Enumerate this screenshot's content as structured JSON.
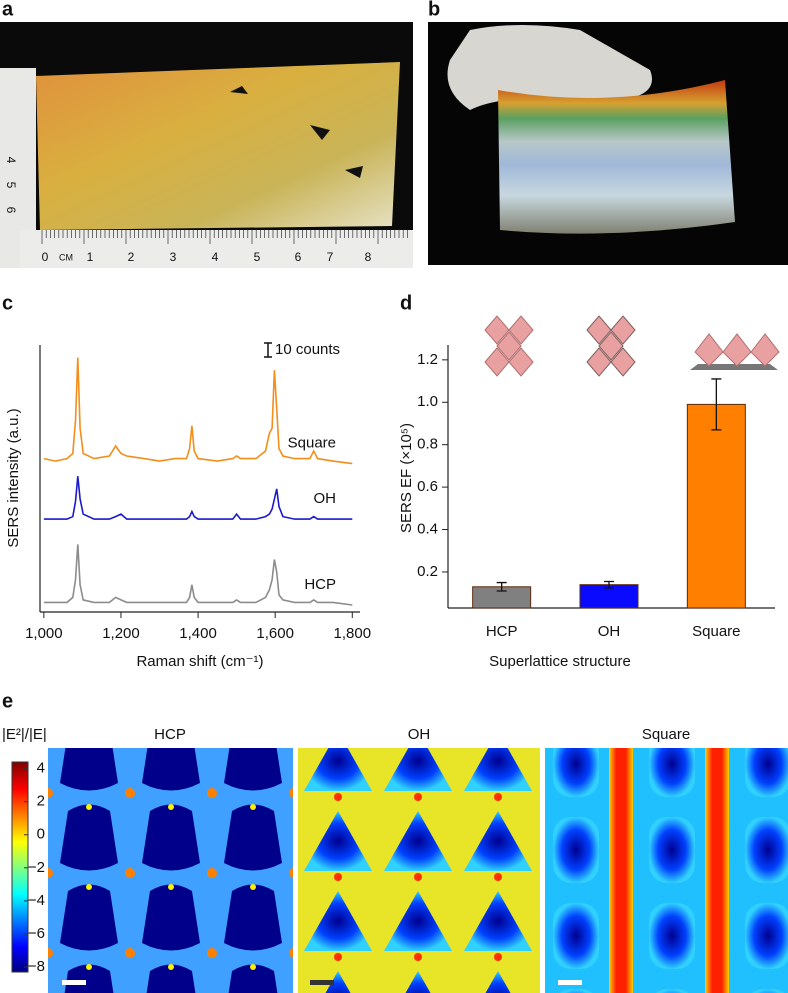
{
  "panel_labels": [
    "a",
    "b",
    "c",
    "d",
    "e"
  ],
  "panel_a": {
    "ruler_labels": [
      "0",
      "CM",
      "1",
      "2",
      "3",
      "4",
      "5",
      "6",
      "7",
      "8"
    ],
    "side_ruler_labels": [
      "4",
      "5",
      "6"
    ]
  },
  "chart_data": [
    {
      "type": "line",
      "annotation": "10 counts",
      "xlabel": "Raman shift (cm⁻¹)",
      "ylabel": "SERS intensity (a.u.)",
      "x": [
        1000,
        1030,
        1060,
        1075,
        1082,
        1088,
        1094,
        1102,
        1130,
        1170,
        1186,
        1200,
        1215,
        1260,
        1300,
        1340,
        1370,
        1378,
        1384,
        1390,
        1400,
        1450,
        1490,
        1500,
        1510,
        1550,
        1575,
        1585,
        1592,
        1598,
        1604,
        1610,
        1620,
        1650,
        1690,
        1700,
        1710,
        1750,
        1800
      ],
      "xlim": [
        990,
        1820
      ],
      "xticks": [
        {
          "value": 1000,
          "label": "1,000"
        },
        {
          "value": 1200,
          "label": "1,200"
        },
        {
          "value": 1400,
          "label": "1,400"
        },
        {
          "value": 1600,
          "label": "1,600"
        },
        {
          "value": 1800,
          "label": "1,800"
        }
      ],
      "ylim": [
        0,
        105
      ],
      "series": [
        {
          "name": "Square",
          "color": "#f28e1c",
          "values": [
            60,
            59,
            60,
            62,
            75,
            100,
            72,
            62,
            60,
            61,
            65,
            62,
            61,
            60,
            59,
            60,
            60,
            64,
            73,
            63,
            60,
            59,
            60,
            61,
            60,
            60,
            63,
            70,
            72,
            95,
            80,
            64,
            61,
            60,
            60,
            63,
            60,
            59,
            58
          ]
        },
        {
          "name": "OH",
          "color": "#1a1acc",
          "values": [
            36,
            36,
            36,
            37,
            43,
            53,
            44,
            38,
            36,
            36,
            37,
            38,
            36,
            36,
            36,
            36,
            36,
            37,
            39,
            37,
            36,
            36,
            36,
            38,
            36,
            36,
            37,
            38,
            40,
            44,
            48,
            41,
            37,
            36,
            36,
            37,
            36,
            36,
            36
          ]
        },
        {
          "name": "HCP",
          "color": "#8c8c8c",
          "values": [
            3,
            3,
            3,
            5,
            12,
            26,
            10,
            4,
            3,
            3,
            5,
            4,
            3,
            3,
            3,
            3,
            3,
            5,
            10,
            5,
            3,
            3,
            3,
            4,
            3,
            3,
            5,
            8,
            12,
            20,
            15,
            6,
            4,
            3,
            3,
            4,
            3,
            3,
            2
          ]
        }
      ]
    },
    {
      "type": "bar",
      "xlabel": "Superlattice structure",
      "ylabel": "SERS EF (×10⁵)",
      "categories": [
        "HCP",
        "OH",
        "Square"
      ],
      "values": [
        0.13,
        0.14,
        0.99
      ],
      "errors": [
        0.02,
        0.015,
        0.12
      ],
      "colors": [
        "#808080",
        "#0a0aff",
        "#ff7f00"
      ],
      "ylim": [
        0.03,
        1.27
      ],
      "yticks": [
        0.2,
        0.4,
        0.6,
        0.8,
        {
          "value": 1,
          "label": "1.0"
        },
        1.2
      ]
    }
  ],
  "panel_e": {
    "title": "|E²|/|E|",
    "map_titles": [
      "HCP",
      "OH",
      "Square"
    ],
    "colorbar": {
      "lim": [
        -8.3,
        4.4
      ],
      "ticks": [
        4,
        2,
        0,
        {
          "value": -2,
          "label": "−2"
        },
        {
          "value": -4,
          "label": "−4"
        },
        {
          "value": -6,
          "label": "−6"
        },
        {
          "value": -8,
          "label": "−8"
        }
      ]
    }
  }
}
